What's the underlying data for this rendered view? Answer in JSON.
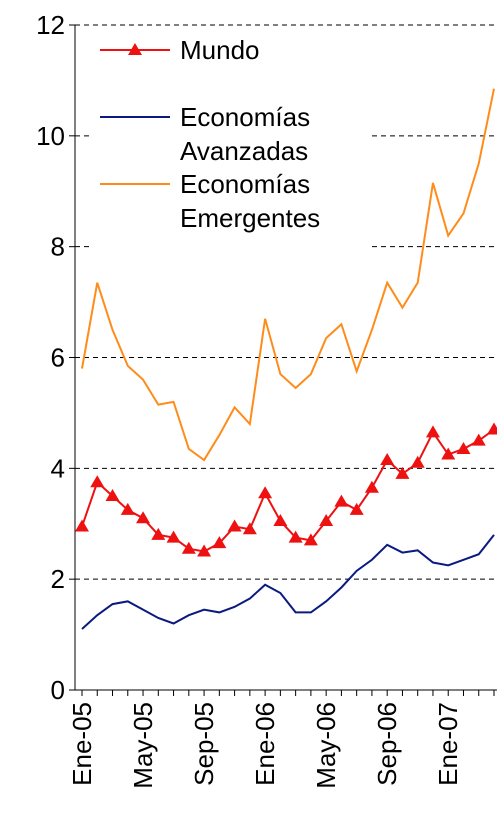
{
  "chart_data": {
    "type": "line",
    "categories": [
      "Ene-05",
      null,
      null,
      null,
      "May-05",
      null,
      null,
      null,
      "Sep-05",
      null,
      null,
      null,
      "Ene-06",
      null,
      null,
      null,
      "May-06",
      null,
      null,
      null,
      "Sep-06",
      null,
      null,
      null,
      "Ene-07",
      null,
      null,
      null
    ],
    "series": [
      {
        "name": "Mundo",
        "color": "#ee1111",
        "marker": "triangle",
        "values": [
          2.95,
          3.75,
          3.5,
          3.25,
          3.1,
          2.8,
          2.75,
          2.55,
          2.5,
          2.65,
          2.95,
          2.9,
          3.55,
          3.05,
          2.75,
          2.7,
          3.05,
          3.4,
          3.25,
          3.65,
          4.15,
          3.9,
          4.1,
          4.65,
          4.25,
          4.35,
          4.5,
          4.7
        ]
      },
      {
        "name": "Economías Avanzadas",
        "color": "#0a1a80",
        "values": [
          1.1,
          1.35,
          1.55,
          1.6,
          1.45,
          1.3,
          1.2,
          1.35,
          1.45,
          1.4,
          1.5,
          1.65,
          1.9,
          1.75,
          1.4,
          1.4,
          1.6,
          1.85,
          2.15,
          2.35,
          2.62,
          2.48,
          2.52,
          2.3,
          2.25,
          2.35,
          2.45,
          2.8
        ]
      },
      {
        "name": "Economías Emergentes",
        "color": "#ff8c1a",
        "values": [
          5.8,
          7.35,
          6.5,
          5.85,
          5.6,
          5.15,
          5.2,
          4.35,
          4.15,
          4.6,
          5.1,
          4.8,
          6.7,
          5.7,
          5.45,
          5.7,
          6.35,
          6.6,
          5.75,
          6.5,
          7.35,
          6.9,
          7.35,
          9.15,
          8.2,
          8.6,
          9.5,
          10.85
        ]
      }
    ],
    "ylim": [
      0,
      12
    ],
    "yticks": [
      0,
      2,
      4,
      6,
      8,
      10,
      12
    ],
    "grid": true,
    "legend": "upper left"
  }
}
